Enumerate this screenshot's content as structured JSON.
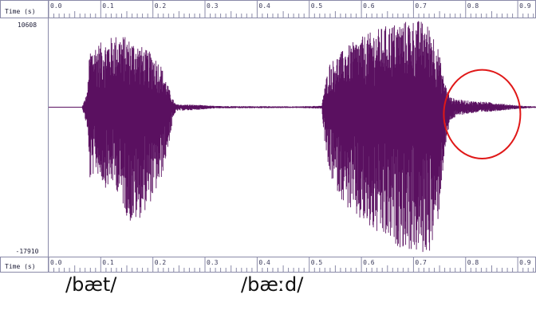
{
  "chart_data": {
    "type": "line",
    "title": "",
    "xlabel": "Time (s)",
    "ylabel": "",
    "xlim": [
      0.0,
      0.935
    ],
    "ylim": [
      -17910,
      10608
    ],
    "x_ticks": [
      "0.0",
      "0.1",
      "0.2",
      "0.3",
      "0.4",
      "0.5",
      "0.6",
      "0.7",
      "0.8",
      "0.9"
    ],
    "y_top_label": "10608",
    "y_bottom_label": "-17910",
    "line_color": "#5a1060",
    "annotation": {
      "shape": "ellipse",
      "color": "#e01818",
      "x_range": [
        0.758,
        0.905
      ],
      "y_range": [
        -6200,
        4500
      ]
    },
    "segments": [
      {
        "x_start": 0.064,
        "x_end": 0.244,
        "envelope": [
          [
            0.064,
            0,
            0
          ],
          [
            0.074,
            1800,
            -2500
          ],
          [
            0.079,
            7000,
            -9000
          ],
          [
            0.09,
            7600,
            -7700
          ],
          [
            0.11,
            8000,
            -9800
          ],
          [
            0.125,
            8700,
            -9200
          ],
          [
            0.14,
            8800,
            -11500
          ],
          [
            0.155,
            8200,
            -14000
          ],
          [
            0.17,
            7800,
            -13800
          ],
          [
            0.185,
            7000,
            -12500
          ],
          [
            0.2,
            6500,
            -11000
          ],
          [
            0.215,
            5200,
            -9000
          ],
          [
            0.228,
            2800,
            -5400
          ],
          [
            0.238,
            1000,
            -1800
          ],
          [
            0.244,
            350,
            -450
          ]
        ]
      },
      {
        "x_start": 0.244,
        "x_end": 0.525,
        "envelope": [
          [
            0.244,
            350,
            -450
          ],
          [
            0.28,
            300,
            -350
          ],
          [
            0.32,
            150,
            -150
          ],
          [
            0.4,
            120,
            -120
          ],
          [
            0.48,
            100,
            -100
          ],
          [
            0.525,
            180,
            -200
          ]
        ]
      },
      {
        "x_start": 0.525,
        "x_end": 0.77,
        "envelope": [
          [
            0.525,
            1000,
            -1200
          ],
          [
            0.53,
            2500,
            -4500
          ],
          [
            0.537,
            5200,
            -8000
          ],
          [
            0.55,
            6000,
            -9700
          ],
          [
            0.57,
            7200,
            -12000
          ],
          [
            0.59,
            8100,
            -13500
          ],
          [
            0.61,
            8800,
            -14600
          ],
          [
            0.63,
            9400,
            -15500
          ],
          [
            0.65,
            9900,
            -16300
          ],
          [
            0.67,
            10200,
            -16800
          ],
          [
            0.69,
            10500,
            -17300
          ],
          [
            0.705,
            10600,
            -17700
          ],
          [
            0.72,
            10300,
            -17900
          ],
          [
            0.735,
            9500,
            -17200
          ],
          [
            0.748,
            7000,
            -13500
          ],
          [
            0.758,
            3500,
            -6500
          ],
          [
            0.77,
            1200,
            -1600
          ]
        ]
      },
      {
        "x_start": 0.77,
        "x_end": 0.935,
        "envelope": [
          [
            0.77,
            1200,
            -1600
          ],
          [
            0.79,
            900,
            -950
          ],
          [
            0.81,
            750,
            -750
          ],
          [
            0.84,
            650,
            -600
          ],
          [
            0.87,
            420,
            -400
          ],
          [
            0.9,
            200,
            -200
          ],
          [
            0.935,
            90,
            -90
          ]
        ]
      }
    ]
  },
  "captions": [
    "/bæt/",
    "/bæːd/"
  ]
}
